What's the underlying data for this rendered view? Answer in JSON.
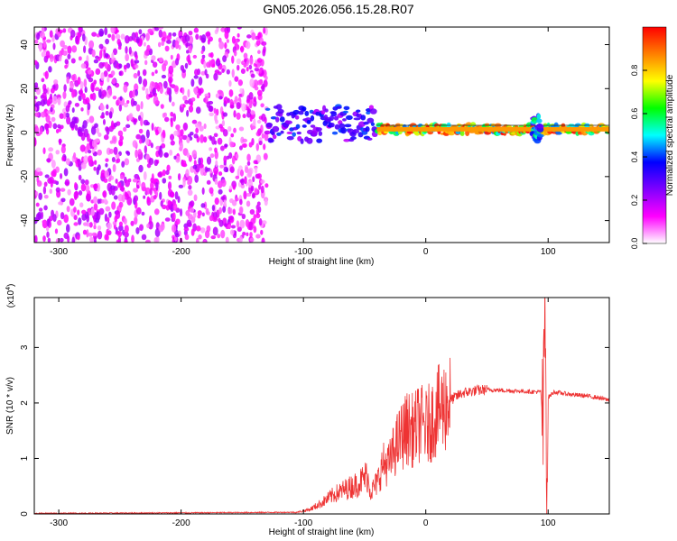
{
  "title": "GN05.2026.056.15.28.R07",
  "chart_data": [
    {
      "type": "heatmap",
      "xlabel": "Height of straight line (km)",
      "ylabel": "Frequency (Hz)",
      "xlim": [
        -320,
        150
      ],
      "ylim": [
        -50,
        48
      ],
      "x_ticks": [
        -300,
        -200,
        -100,
        0,
        100
      ],
      "y_ticks": [
        -40,
        -20,
        0,
        20,
        40
      ],
      "colorbar": {
        "label": "Normalized spectral amplitude",
        "range": [
          0,
          1
        ],
        "ticks": [
          0.0,
          0.2,
          0.4,
          0.6,
          0.8
        ],
        "tick_labels": [
          "0.0",
          "0.2",
          "0.4",
          "0.6",
          "0.8"
        ],
        "colors": [
          "#ffffff",
          "#ff00ff",
          "#8000ff",
          "#0000ff",
          "#00ffff",
          "#00ff00",
          "#ffff00",
          "#ff8000",
          "#ff0000"
        ]
      },
      "features": [
        {
          "x_range": [
            -320,
            -130
          ],
          "freq_range": [
            -50,
            48
          ],
          "amplitude": 0.15,
          "description": "scattered noise"
        },
        {
          "x_range": [
            -130,
            -40
          ],
          "freq_center": 4,
          "freq_halfwidth": 8,
          "amplitude": 0.35
        },
        {
          "x_range": [
            -40,
            150
          ],
          "freq_center": 1.5,
          "freq_halfwidth": 2,
          "amplitude": 0.85
        },
        {
          "x_range": [
            87,
            94
          ],
          "freq_center": 2,
          "freq_halfwidth": 6,
          "amplitude": 0.5
        }
      ]
    },
    {
      "type": "line",
      "xlabel": "Height of straight line (km)",
      "ylabel": "SNR (10 * v/v)",
      "exponent_label": "(x10",
      "exponent_sup": "4",
      "exponent_close": ")",
      "xlim": [
        -320,
        150
      ],
      "ylim": [
        0,
        3.9
      ],
      "x_ticks": [
        -300,
        -200,
        -100,
        0,
        100
      ],
      "y_ticks": [
        0,
        1,
        2,
        3
      ],
      "color": "#ee3333",
      "series": [
        {
          "x": [
            -320,
            -200,
            -105,
            -95,
            -85,
            -75,
            -65,
            -55,
            -48,
            -45,
            -40,
            -35,
            -30,
            -25,
            -20,
            -15,
            -10,
            -5,
            0,
            5,
            10,
            20,
            30,
            40,
            50,
            60,
            70,
            80,
            90,
            94,
            96,
            97,
            98,
            99,
            100,
            105,
            110,
            120,
            130,
            140,
            150
          ],
          "y": [
            0.01,
            0.02,
            0.03,
            0.08,
            0.2,
            0.35,
            0.45,
            0.55,
            0.7,
            0.4,
            0.55,
            0.9,
            0.9,
            1.2,
            1.4,
            1.55,
            1.5,
            1.65,
            1.55,
            1.7,
            1.85,
            2.05,
            2.18,
            2.22,
            2.24,
            2.23,
            2.22,
            2.21,
            2.2,
            2.2,
            1.5,
            3.6,
            2.8,
            0.3,
            2.1,
            2.2,
            2.18,
            2.15,
            2.13,
            2.1,
            2.05
          ]
        }
      ]
    }
  ]
}
